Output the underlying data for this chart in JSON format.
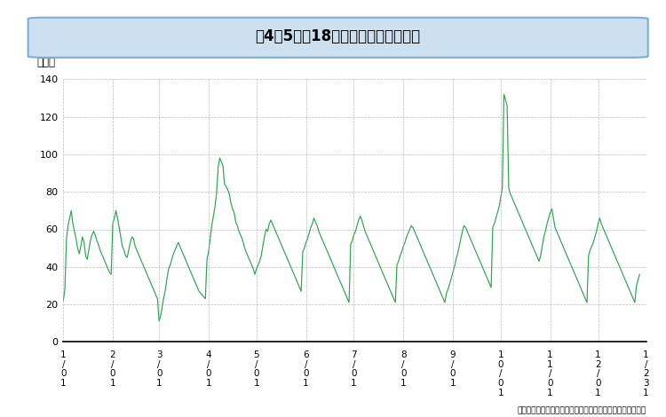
{
  "title": "第4－5図　18歳以下の日別自殺者数",
  "ylabel": "（人）",
  "source_text": "資料：厚生労働省「人口動態調査」の調査票情報の独自集計",
  "line_color": "#2ca44e",
  "background_color": "#ffffff",
  "title_bg_color": "#cce0f0",
  "title_border_color": "#7ab0d4",
  "grid_color": "#aaaaaa",
  "ylim": [
    0,
    140
  ],
  "yticks": [
    0,
    20,
    40,
    60,
    80,
    100,
    120,
    140
  ],
  "values": [
    22,
    28,
    55,
    62,
    66,
    70,
    63,
    59,
    55,
    50,
    47,
    51,
    56,
    53,
    46,
    44,
    49,
    54,
    57,
    59,
    57,
    54,
    52,
    49,
    47,
    45,
    43,
    41,
    39,
    37,
    36,
    63,
    66,
    70,
    66,
    61,
    56,
    51,
    49,
    46,
    45,
    49,
    53,
    56,
    55,
    51,
    49,
    47,
    45,
    43,
    41,
    39,
    37,
    35,
    33,
    31,
    29,
    27,
    25,
    23,
    11,
    14,
    19,
    24,
    28,
    34,
    39,
    41,
    44,
    47,
    49,
    51,
    53,
    51,
    49,
    47,
    45,
    43,
    41,
    39,
    37,
    35,
    33,
    31,
    29,
    27,
    26,
    25,
    24,
    23,
    44,
    48,
    55,
    62,
    67,
    72,
    79,
    93,
    98,
    96,
    94,
    84,
    83,
    81,
    79,
    74,
    71,
    69,
    64,
    62,
    59,
    57,
    55,
    52,
    49,
    47,
    45,
    43,
    41,
    39,
    36,
    39,
    41,
    43,
    46,
    51,
    56,
    60,
    59,
    63,
    65,
    63,
    61,
    59,
    57,
    55,
    53,
    51,
    49,
    47,
    45,
    43,
    41,
    39,
    37,
    35,
    33,
    31,
    29,
    27,
    48,
    50,
    53,
    55,
    58,
    61,
    63,
    66,
    64,
    62,
    59,
    57,
    55,
    53,
    51,
    49,
    47,
    45,
    43,
    41,
    39,
    37,
    35,
    33,
    31,
    29,
    27,
    25,
    23,
    21,
    52,
    54,
    57,
    59,
    62,
    65,
    67,
    65,
    62,
    59,
    57,
    55,
    53,
    51,
    49,
    47,
    45,
    43,
    41,
    39,
    37,
    35,
    33,
    31,
    29,
    27,
    25,
    23,
    21,
    41,
    43,
    46,
    48,
    51,
    53,
    56,
    58,
    60,
    62,
    61,
    59,
    57,
    55,
    53,
    51,
    49,
    47,
    45,
    43,
    41,
    39,
    37,
    35,
    33,
    31,
    29,
    27,
    25,
    23,
    21,
    26,
    28,
    31,
    34,
    37,
    40,
    44,
    47,
    51,
    55,
    59,
    62,
    61,
    59,
    57,
    55,
    53,
    51,
    49,
    47,
    45,
    43,
    41,
    39,
    37,
    35,
    33,
    31,
    29,
    61,
    63,
    66,
    69,
    72,
    77,
    82,
    132,
    129,
    126,
    82,
    79,
    77,
    75,
    73,
    71,
    69,
    67,
    65,
    63,
    61,
    59,
    57,
    55,
    53,
    51,
    49,
    47,
    45,
    43,
    46,
    51,
    56,
    59,
    63,
    66,
    69,
    71,
    66,
    61,
    59,
    57,
    55,
    53,
    51,
    49,
    47,
    45,
    43,
    41,
    39,
    37,
    35,
    33,
    31,
    29,
    27,
    25,
    23,
    21,
    46,
    49,
    51,
    53,
    56,
    59,
    63,
    66,
    63,
    61,
    59,
    57,
    55,
    53,
    51,
    49,
    47,
    45,
    43,
    41,
    39,
    37,
    35,
    33,
    31,
    29,
    27,
    25,
    23,
    21,
    30,
    33,
    36
  ],
  "xtick_positions": [
    0,
    31,
    60,
    91,
    121,
    152,
    182,
    213,
    244,
    274,
    305,
    335,
    365
  ],
  "xtick_label_lines": [
    [
      "1",
      "/",
      "0",
      "1"
    ],
    [
      "2",
      "/",
      "0",
      "1"
    ],
    [
      "3",
      "/",
      "0",
      "1"
    ],
    [
      "4",
      "/",
      "0",
      "1"
    ],
    [
      "5",
      "/",
      "0",
      "1"
    ],
    [
      "6",
      "/",
      "0",
      "1"
    ],
    [
      "7",
      "/",
      "0",
      "1"
    ],
    [
      "8",
      "/",
      "0",
      "1"
    ],
    [
      "9",
      "/",
      "0",
      "1"
    ],
    [
      "1",
      "0",
      "/",
      "0",
      "1"
    ],
    [
      "1",
      "1",
      "/",
      "0",
      "1"
    ],
    [
      "1",
      "2",
      "/",
      "0",
      "1"
    ],
    [
      "1",
      "/",
      "2",
      "3",
      "1"
    ]
  ]
}
